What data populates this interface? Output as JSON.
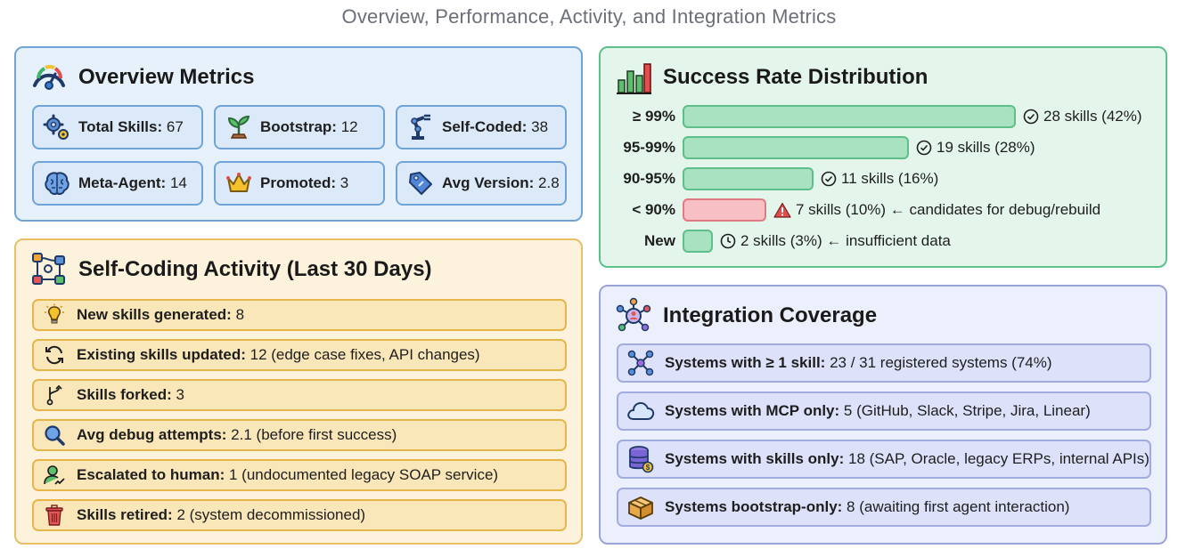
{
  "title": "Overview, Performance, Activity, and Integration Metrics",
  "overview": {
    "title": "Overview Metrics",
    "icon": "gauge-icon",
    "cards": [
      {
        "label": "Total Skills:",
        "value": "67",
        "icon": "gears-icon"
      },
      {
        "label": "Bootstrap:",
        "value": "12",
        "icon": "sprout-icon"
      },
      {
        "label": "Self-Coded:",
        "value": "38",
        "icon": "robot-arm-icon"
      },
      {
        "label": "Meta-Agent:",
        "value": "14",
        "icon": "brain-icon"
      },
      {
        "label": "Promoted:",
        "value": "3",
        "icon": "crown-icon"
      },
      {
        "label": "Avg Version:",
        "value": "2.8",
        "icon": "tag-icon"
      }
    ]
  },
  "success": {
    "title": "Success Rate Distribution",
    "icon": "bar-chart-icon",
    "rows": [
      {
        "label": "≥ 99%",
        "text": "28 skills (42%)",
        "count": 28,
        "status": "ok",
        "icon": "check-circle-icon"
      },
      {
        "label": "95-99%",
        "text": "19 skills (28%)",
        "count": 19,
        "status": "ok",
        "icon": "check-circle-icon"
      },
      {
        "label": "90-95%",
        "text": "11 skills (16%)",
        "count": 11,
        "status": "ok",
        "icon": "check-circle-icon"
      },
      {
        "label": "< 90%",
        "text": "7 skills (10%) ← candidates for debug/rebuild",
        "count": 7,
        "status": "warn",
        "icon": "warning-icon"
      },
      {
        "label": "New",
        "text": "2 skills (3%) ← insufficient data",
        "count": 2,
        "status": "ok",
        "icon": "clock-icon"
      }
    ],
    "colors": {
      "ok_fill": "#a8e2c0",
      "warn_fill": "#f6c0c4"
    }
  },
  "activity": {
    "title": "Self-Coding Activity (Last 30 Days)",
    "icon": "workflow-icon",
    "rows": [
      {
        "label": "New skills generated:",
        "value": "8",
        "icon": "lightbulb-icon"
      },
      {
        "label": "Existing skills updated:",
        "value": "12 (edge case fixes, API changes)",
        "icon": "refresh-icon"
      },
      {
        "label": "Skills forked:",
        "value": "3",
        "icon": "fork-icon"
      },
      {
        "label": "Avg debug attempts:",
        "value": "2.1 (before first success)",
        "icon": "magnifier-icon"
      },
      {
        "label": "Escalated to human:",
        "value": "1 (undocumented legacy SOAP service)",
        "icon": "person-icon"
      },
      {
        "label": "Skills retired:",
        "value": "2 (system decommissioned)",
        "icon": "trash-icon"
      }
    ]
  },
  "integration": {
    "title": "Integration Coverage",
    "icon": "hub-icon",
    "rows": [
      {
        "label": "Systems with ≥ 1 skill:",
        "value": "23 / 31 registered systems (74%)",
        "icon": "network-icon"
      },
      {
        "label": "Systems with MCP only:",
        "value": "5 (GitHub, Slack, Stripe, Jira, Linear)",
        "icon": "cloud-icon"
      },
      {
        "label": "Systems with skills only:",
        "value": "18 (SAP, Oracle, legacy ERPs, internal APIs)",
        "icon": "database-icon"
      },
      {
        "label": "Systems bootstrap-only:",
        "value": "8 (awaiting first agent interaction)",
        "icon": "box-icon"
      }
    ]
  }
}
